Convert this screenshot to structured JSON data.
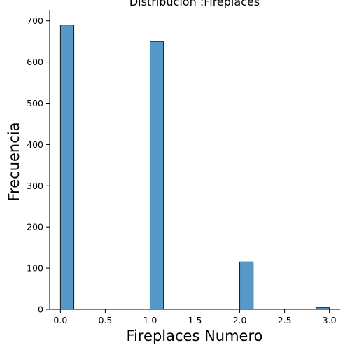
{
  "chart_data": {
    "type": "bar",
    "title": "Distribución :Fireplaces",
    "xlabel": "Fireplaces Numero",
    "ylabel": "Frecuencia",
    "xlim": [
      -0.12,
      3.12
    ],
    "ylim": [
      0,
      725
    ],
    "xticks": [
      "0.0",
      "0.5",
      "1.0",
      "1.5",
      "2.0",
      "2.5",
      "3.0"
    ],
    "yticks": [
      "0",
      "100",
      "200",
      "300",
      "400",
      "500",
      "600",
      "700"
    ],
    "bin_width": 0.15,
    "bars": [
      {
        "x_start": 0.0,
        "x_end": 0.15,
        "value": 690
      },
      {
        "x_start": 1.0,
        "x_end": 1.15,
        "value": 650
      },
      {
        "x_start": 2.0,
        "x_end": 2.15,
        "value": 115
      },
      {
        "x_start": 2.85,
        "x_end": 3.0,
        "value": 4
      }
    ],
    "bar_color": "#5799C6",
    "bar_edge_color": "#1a1a1a",
    "grid": false
  }
}
